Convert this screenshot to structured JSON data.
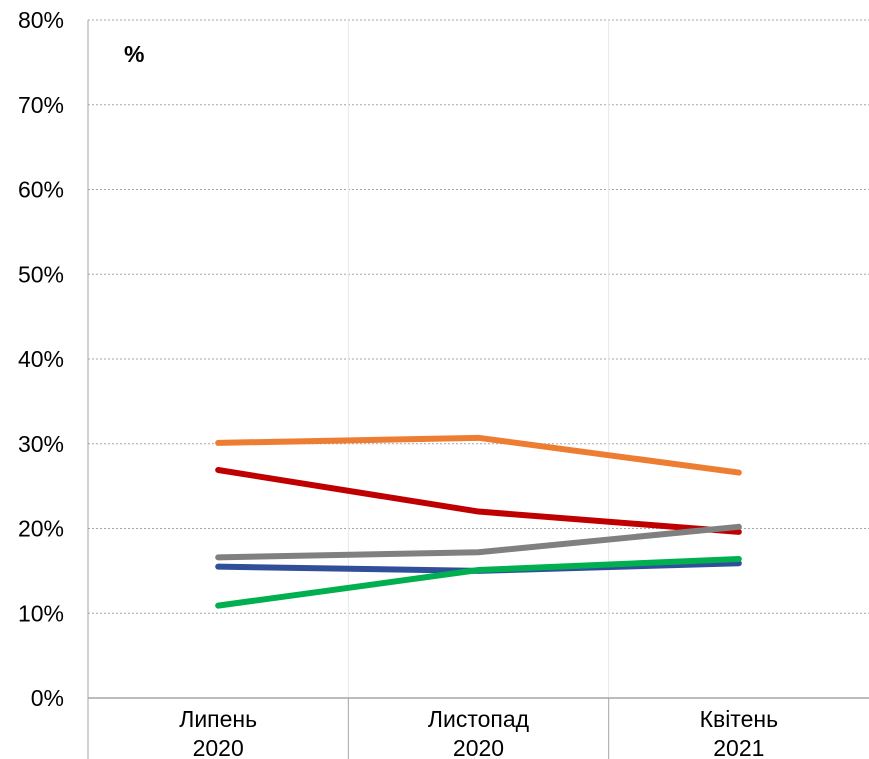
{
  "chart_data": {
    "type": "line",
    "unit_label": "%",
    "categories": [
      {
        "line1": "Липень",
        "line2": "2020"
      },
      {
        "line1": "Листопад",
        "line2": "2020"
      },
      {
        "line1": "Квітень",
        "line2": "2021"
      }
    ],
    "ylim": [
      0,
      80
    ],
    "yticks": [
      "0%",
      "10%",
      "20%",
      "30%",
      "40%",
      "50%",
      "60%",
      "70%",
      "80%"
    ],
    "ytick_values": [
      0,
      10,
      20,
      30,
      40,
      50,
      60,
      70,
      80
    ],
    "grid": true,
    "series": [
      {
        "color": "#ED7D31",
        "values": [
          30.1,
          30.7,
          26.6
        ]
      },
      {
        "color": "#C00000",
        "values": [
          26.9,
          22.0,
          19.6
        ]
      },
      {
        "color": "#808080",
        "values": [
          16.6,
          17.2,
          20.2
        ]
      },
      {
        "color": "#2F4F9A",
        "values": [
          15.5,
          15.0,
          15.9
        ]
      },
      {
        "color": "#00B050",
        "values": [
          10.9,
          15.1,
          16.4
        ]
      }
    ]
  }
}
